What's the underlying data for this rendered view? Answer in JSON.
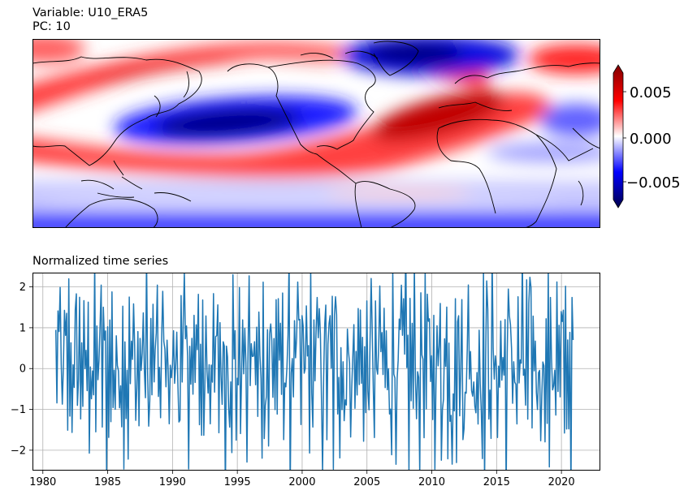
{
  "map_panel": {
    "title_line1": "Variable: U10_ERA5",
    "title_line2": "PC: 10",
    "colorbar": {
      "ticks": [
        "0.005",
        "0.000",
        "−0.005"
      ],
      "colormap": "seismic",
      "range": [
        -0.007,
        0.007
      ]
    }
  },
  "chart_data": {
    "type": "line",
    "title": "Normalized time series",
    "xlabel": "",
    "ylabel": "",
    "xlim": [
      1979.2,
      2023.0
    ],
    "ylim": [
      -2.5,
      2.35
    ],
    "x_ticks": [
      "1980",
      "1985",
      "1990",
      "1995",
      "2000",
      "2005",
      "2010",
      "2015",
      "2020"
    ],
    "y_ticks": [
      "−2",
      "−1",
      "0",
      "1",
      "2"
    ],
    "grid": true,
    "color": "#1f77b4",
    "series": [
      {
        "x_start": 1981.0,
        "x_end": 2020.9,
        "sample_count": 480,
        "note_values": "dense noisy signal, amplitude ~±2.4, std 1",
        "values_sample": [
          0.7,
          -0.3,
          1.6,
          -1.3,
          2.3,
          -0.8,
          0.4,
          -2.1,
          1.2,
          -0.5,
          0.9,
          -1.6,
          2.0,
          -0.2,
          0.6,
          -1.1,
          1.8,
          -2.4,
          0.3,
          1.1
        ]
      }
    ]
  }
}
